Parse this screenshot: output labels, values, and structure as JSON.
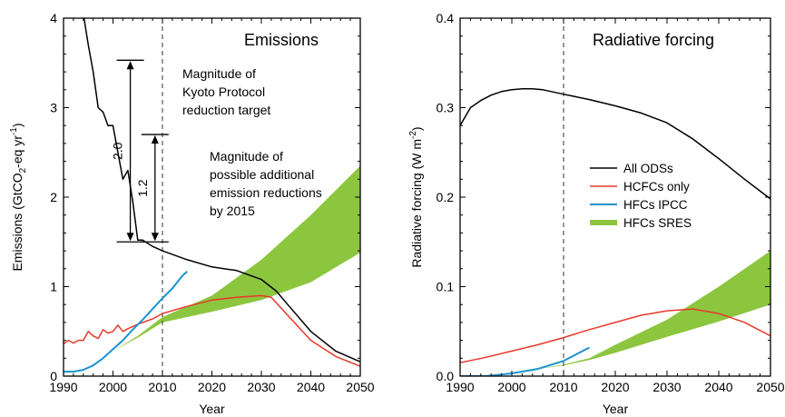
{
  "colors": {
    "all_odss": "#000000",
    "hcfcs_only": "#e8382a",
    "hfcs_ipcc": "#1b93d0",
    "hfcs_sres": "#8cc63f"
  },
  "chart_data": [
    {
      "type": "line",
      "title": "Emissions",
      "xlabel": "Year",
      "ylabel": "Emissions (GtCO2-eq yr-1)",
      "ylabel_parts": [
        "Emissions (GtCO",
        "2",
        "-eq yr",
        "-1",
        ")"
      ],
      "xlim": [
        1990,
        2050
      ],
      "ylim": [
        0,
        4
      ],
      "x_ticks": [
        "1990",
        "2000",
        "2010",
        "2020",
        "2030",
        "2040",
        "2050"
      ],
      "y_ticks": [
        "0",
        "1",
        "2",
        "3",
        "4"
      ],
      "vline_x": 2010,
      "series": [
        {
          "name": "All ODSs",
          "x": [
            1990,
            1991,
            1992,
            1993,
            1994,
            1995,
            1996,
            1997,
            1998,
            1999,
            2000,
            2001,
            2002,
            2003,
            2004,
            2005,
            2006,
            2008,
            2010,
            2015,
            2020,
            2025,
            2030,
            2033,
            2035,
            2040,
            2045,
            2050
          ],
          "y": [
            4.6,
            4.5,
            4.4,
            4.2,
            4.05,
            3.7,
            3.4,
            3.0,
            2.95,
            2.8,
            2.8,
            2.5,
            2.2,
            2.3,
            1.95,
            1.52,
            1.52,
            1.45,
            1.4,
            1.3,
            1.22,
            1.18,
            1.08,
            0.95,
            0.82,
            0.5,
            0.28,
            0.16
          ]
        },
        {
          "name": "HCFCs only",
          "x": [
            1990,
            1991,
            1992,
            1993,
            1994,
            1995,
            1996,
            1997,
            1998,
            1999,
            2000,
            2001,
            2002,
            2003,
            2005,
            2008,
            2010,
            2015,
            2020,
            2025,
            2030,
            2032,
            2035,
            2040,
            2045,
            2050
          ],
          "y": [
            0.36,
            0.4,
            0.37,
            0.4,
            0.4,
            0.5,
            0.45,
            0.42,
            0.52,
            0.48,
            0.5,
            0.57,
            0.5,
            0.53,
            0.58,
            0.64,
            0.7,
            0.78,
            0.85,
            0.88,
            0.9,
            0.88,
            0.7,
            0.4,
            0.22,
            0.11
          ]
        },
        {
          "name": "HFCs IPCC",
          "x": [
            1990,
            1992,
            1994,
            1996,
            1998,
            2000,
            2002,
            2004,
            2006,
            2008,
            2010,
            2012,
            2014,
            2015
          ],
          "y": [
            0.05,
            0.05,
            0.07,
            0.12,
            0.2,
            0.3,
            0.4,
            0.52,
            0.63,
            0.75,
            0.87,
            0.98,
            1.12,
            1.17
          ]
        },
        {
          "name": "HFCs SRES",
          "band": true,
          "x": [
            1997,
            2000,
            2005,
            2010,
            2020,
            2030,
            2040,
            2050
          ],
          "upper": [
            0.17,
            0.28,
            0.45,
            0.66,
            0.9,
            1.3,
            1.8,
            2.35
          ],
          "lower": [
            0.17,
            0.28,
            0.43,
            0.6,
            0.72,
            0.85,
            1.05,
            1.38
          ]
        }
      ],
      "annotations": {
        "kyoto": {
          "label_lines": [
            "Magnitude of",
            "Kyoto Protocol",
            "reduction target"
          ],
          "value": "2.0",
          "y_range": [
            1.5,
            3.53
          ],
          "x": 2003.5
        },
        "additional": {
          "label_lines": [
            "Magnitude of",
            "possible additional",
            "emission reductions",
            "by 2015"
          ],
          "value": "1.2",
          "y_range": [
            1.5,
            2.7
          ],
          "x": 2008.5
        }
      }
    },
    {
      "type": "line",
      "title": "Radiative forcing",
      "xlabel": "Year",
      "ylabel": "Radiative forcing (W m-2)",
      "ylabel_parts": [
        "Radiative forcing (W m",
        "-2",
        ")"
      ],
      "xlim": [
        1990,
        2050
      ],
      "ylim": [
        0,
        0.4
      ],
      "x_ticks": [
        "1990",
        "2000",
        "2010",
        "2020",
        "2030",
        "2040",
        "2050"
      ],
      "y_ticks": [
        "0.0",
        "0.1",
        "0.2",
        "0.3",
        "0.4"
      ],
      "vline_x": 2010,
      "legend": {
        "placement": "right-center",
        "entries": [
          "All ODSs",
          "HCFCs only",
          "HFCs IPCC",
          "HFCs SRES"
        ]
      },
      "series": [
        {
          "name": "All ODSs",
          "x": [
            1990,
            1992,
            1994,
            1996,
            1998,
            2000,
            2002,
            2004,
            2006,
            2010,
            2015,
            2020,
            2025,
            2030,
            2035,
            2040,
            2045,
            2050
          ],
          "y": [
            0.28,
            0.3,
            0.308,
            0.314,
            0.318,
            0.32,
            0.321,
            0.321,
            0.32,
            0.315,
            0.309,
            0.302,
            0.294,
            0.283,
            0.265,
            0.243,
            0.22,
            0.198
          ]
        },
        {
          "name": "HCFCs only",
          "x": [
            1990,
            1995,
            2000,
            2005,
            2010,
            2015,
            2020,
            2025,
            2030,
            2035,
            2040,
            2045,
            2050
          ],
          "y": [
            0.015,
            0.021,
            0.028,
            0.035,
            0.043,
            0.052,
            0.06,
            0.068,
            0.073,
            0.075,
            0.07,
            0.06,
            0.045
          ]
        },
        {
          "name": "HFCs IPCC",
          "x": [
            1990,
            1995,
            2000,
            2005,
            2010,
            2015
          ],
          "y": [
            0.0,
            0.0,
            0.003,
            0.008,
            0.017,
            0.032
          ]
        },
        {
          "name": "HFCs SRES",
          "band": true,
          "x": [
            2002,
            2005,
            2010,
            2015,
            2020,
            2030,
            2040,
            2050
          ],
          "upper": [
            0.006,
            0.008,
            0.013,
            0.02,
            0.035,
            0.063,
            0.1,
            0.14
          ],
          "lower": [
            0.006,
            0.008,
            0.012,
            0.018,
            0.026,
            0.044,
            0.061,
            0.08
          ]
        }
      ]
    }
  ]
}
